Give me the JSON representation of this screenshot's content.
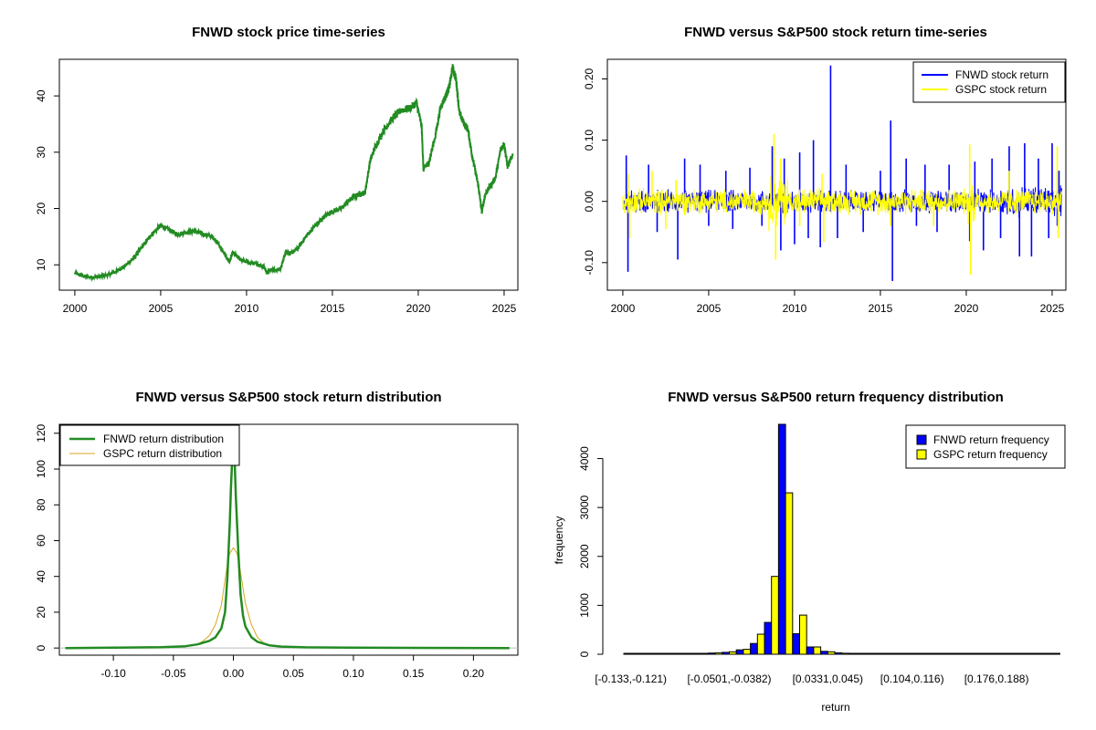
{
  "colors": {
    "fnwd_price": "#228B22",
    "fnwd_return": "#0000FF",
    "gspc_return": "#FFFF00",
    "gspc_density": "#DAA520",
    "fnwd_density": "#228B22"
  },
  "chart_data": [
    {
      "type": "line",
      "title": "FNWD stock price time-series",
      "xlabel": "",
      "ylabel": "",
      "xlim": [
        1999.1,
        2025.8
      ],
      "ylim": [
        5.5,
        46.5
      ],
      "xticks": [
        2000,
        2005,
        2010,
        2015,
        2020,
        2025
      ],
      "yticks": [
        10,
        20,
        30,
        40
      ],
      "series": [
        {
          "name": "FNWD",
          "x": [
            2000.0,
            2000.5,
            2001.0,
            2001.5,
            2002.0,
            2002.5,
            2003.0,
            2003.5,
            2004.0,
            2004.5,
            2005.0,
            2005.5,
            2006.0,
            2006.5,
            2007.0,
            2007.5,
            2008.0,
            2008.3,
            2008.6,
            2009.0,
            2009.2,
            2009.6,
            2010.0,
            2010.5,
            2011.0,
            2011.2,
            2011.4,
            2011.7,
            2012.0,
            2012.3,
            2012.6,
            2013.0,
            2013.5,
            2014.0,
            2014.5,
            2015.0,
            2015.5,
            2016.0,
            2016.5,
            2016.9,
            2017.2,
            2017.5,
            2018.0,
            2018.5,
            2019.0,
            2019.5,
            2019.9,
            2020.2,
            2020.3,
            2020.6,
            2021.0,
            2021.3,
            2021.6,
            2021.8,
            2022.0,
            2022.2,
            2022.4,
            2022.6,
            2022.9,
            2023.1,
            2023.3,
            2023.5,
            2023.7,
            2023.9,
            2024.2,
            2024.5,
            2024.8,
            2025.0,
            2025.2,
            2025.5
          ],
          "y": [
            8.5,
            8.0,
            7.8,
            7.9,
            8.3,
            9.0,
            10.0,
            11.5,
            13.5,
            15.5,
            17.0,
            16.2,
            15.4,
            15.8,
            16.0,
            15.4,
            15.0,
            14.0,
            12.5,
            10.5,
            12.2,
            11.0,
            10.5,
            10.2,
            9.8,
            8.5,
            9.3,
            9.0,
            9.4,
            12.5,
            12.0,
            13.0,
            15.2,
            17.0,
            18.5,
            19.5,
            20.0,
            21.5,
            22.5,
            22.8,
            28.5,
            31.0,
            34.0,
            36.0,
            37.5,
            37.8,
            38.8,
            34.5,
            27.0,
            28.0,
            33.0,
            38.0,
            40.0,
            41.5,
            45.0,
            43.0,
            37.0,
            35.5,
            34.0,
            30.0,
            27.0,
            24.0,
            19.5,
            22.5,
            24.0,
            25.5,
            30.5,
            31.5,
            27.5,
            29.5
          ]
        }
      ]
    },
    {
      "type": "line",
      "title": "FNWD versus S&P500 stock return time-series",
      "xlabel": "",
      "ylabel": "",
      "xlim": [
        1999.1,
        2025.8
      ],
      "ylim": [
        -0.145,
        0.232
      ],
      "xticks": [
        2000,
        2005,
        2010,
        2015,
        2020,
        2025
      ],
      "yticks": [
        -0.1,
        0.0,
        0.1,
        0.2
      ],
      "ytick_labels": [
        "-0.10",
        "0.00",
        "0.10",
        "0.20"
      ],
      "legend": [
        "FNWD stock return",
        "GSPC stock return"
      ],
      "legend_position": "top-right",
      "series": [
        {
          "name": "FNWD stock return",
          "spikes": [
            [
              2000.2,
              0.075
            ],
            [
              2000.3,
              -0.115
            ],
            [
              2001.5,
              0.06
            ],
            [
              2002.0,
              -0.05
            ],
            [
              2003.2,
              -0.095
            ],
            [
              2003.6,
              0.07
            ],
            [
              2004.5,
              0.06
            ],
            [
              2005.0,
              -0.04
            ],
            [
              2006.0,
              0.05
            ],
            [
              2006.4,
              -0.045
            ],
            [
              2007.4,
              0.055
            ],
            [
              2008.1,
              -0.04
            ],
            [
              2008.7,
              0.09
            ],
            [
              2009.2,
              -0.08
            ],
            [
              2009.4,
              0.07
            ],
            [
              2010.0,
              -0.07
            ],
            [
              2010.3,
              0.08
            ],
            [
              2010.8,
              -0.06
            ],
            [
              2011.1,
              0.1
            ],
            [
              2011.5,
              -0.075
            ],
            [
              2012.1,
              0.222
            ],
            [
              2012.5,
              -0.06
            ],
            [
              2013.0,
              0.06
            ],
            [
              2014.0,
              -0.05
            ],
            [
              2015.0,
              0.05
            ],
            [
              2015.6,
              0.132
            ],
            [
              2015.7,
              -0.13
            ],
            [
              2016.5,
              0.07
            ],
            [
              2017.1,
              -0.04
            ],
            [
              2017.6,
              0.06
            ],
            [
              2018.3,
              -0.05
            ],
            [
              2019.0,
              0.06
            ],
            [
              2020.2,
              -0.065
            ],
            [
              2020.5,
              0.065
            ],
            [
              2021.0,
              -0.08
            ],
            [
              2021.5,
              0.07
            ],
            [
              2022.0,
              -0.06
            ],
            [
              2022.5,
              0.09
            ],
            [
              2023.1,
              -0.09
            ],
            [
              2023.4,
              0.095
            ],
            [
              2023.8,
              -0.09
            ],
            [
              2024.2,
              0.07
            ],
            [
              2024.8,
              -0.06
            ],
            [
              2025.0,
              0.095
            ],
            [
              2025.3,
              -0.04
            ],
            [
              2025.4,
              0.05
            ]
          ],
          "noise_amplitude": 0.018
        },
        {
          "name": "GSPC stock return",
          "spikes": [
            [
              2000.3,
              0.045
            ],
            [
              2000.4,
              -0.06
            ],
            [
              2001.7,
              0.05
            ],
            [
              2002.5,
              -0.045
            ],
            [
              2003.1,
              0.035
            ],
            [
              2008.8,
              0.11
            ],
            [
              2008.9,
              -0.095
            ],
            [
              2009.2,
              0.07
            ],
            [
              2010.3,
              -0.04
            ],
            [
              2011.6,
              0.045
            ],
            [
              2011.7,
              -0.066
            ],
            [
              2015.6,
              -0.04
            ],
            [
              2018.1,
              -0.04
            ],
            [
              2020.2,
              0.093
            ],
            [
              2020.25,
              -0.12
            ],
            [
              2022.5,
              0.05
            ],
            [
              2025.3,
              0.09
            ],
            [
              2025.35,
              -0.06
            ]
          ],
          "noise_amplitude": 0.02
        }
      ]
    },
    {
      "type": "line",
      "title": "FNWD versus S&P500 stock return distribution",
      "xlabel": "",
      "ylabel": "",
      "xlim": [
        -0.145,
        0.237
      ],
      "ylim": [
        -4,
        125
      ],
      "xticks": [
        -0.1,
        -0.05,
        0.0,
        0.05,
        0.1,
        0.15,
        0.2
      ],
      "xtick_labels": [
        "-0.10",
        "-0.05",
        "0.00",
        "0.05",
        "0.10",
        "0.15",
        "0.20"
      ],
      "yticks": [
        0,
        20,
        40,
        60,
        80,
        100,
        120
      ],
      "legend": [
        "FNWD return distribution",
        "GSPC return distribution"
      ],
      "legend_position": "top-left",
      "series": [
        {
          "name": "FNWD return distribution",
          "x": [
            -0.14,
            -0.1,
            -0.06,
            -0.04,
            -0.03,
            -0.02,
            -0.015,
            -0.01,
            -0.007,
            -0.005,
            -0.003,
            -0.002,
            -0.001,
            0.0,
            0.001,
            0.002,
            0.004,
            0.006,
            0.008,
            0.01,
            0.015,
            0.02,
            0.03,
            0.04,
            0.06,
            0.1,
            0.15,
            0.23
          ],
          "y": [
            0.0,
            0.2,
            0.5,
            1.0,
            2.0,
            4.0,
            6.0,
            11.0,
            20.0,
            40.0,
            70.0,
            90.0,
            105.0,
            110.0,
            105.0,
            85.0,
            55.0,
            30.0,
            18.0,
            12.0,
            6.0,
            3.5,
            1.5,
            0.8,
            0.4,
            0.2,
            0.1,
            0.0
          ]
        },
        {
          "name": "GSPC return distribution",
          "x": [
            -0.13,
            -0.1,
            -0.06,
            -0.04,
            -0.03,
            -0.025,
            -0.02,
            -0.015,
            -0.01,
            -0.007,
            -0.005,
            -0.003,
            0.0,
            0.003,
            0.005,
            0.007,
            0.01,
            0.015,
            0.02,
            0.025,
            0.03,
            0.04,
            0.06,
            0.1,
            0.15,
            0.23
          ],
          "y": [
            0.0,
            0.2,
            0.5,
            1.0,
            2.0,
            4.0,
            7.0,
            13.0,
            24.0,
            38.0,
            47.0,
            53.0,
            56.0,
            53.0,
            46.0,
            38.0,
            25.0,
            13.0,
            6.0,
            3.0,
            1.5,
            0.8,
            0.3,
            0.1,
            0.0,
            0.0
          ]
        }
      ]
    },
    {
      "type": "bar",
      "title": "FNWD versus S&P500 return frequency distribution",
      "xlabel": "return",
      "ylabel": "frequency",
      "ylim": [
        0,
        4700
      ],
      "yticks": [
        0,
        1000,
        2000,
        3000,
        4000
      ],
      "xtick_labels": [
        "[-0.133,-0.121)",
        "[-0.0501,-0.0382)",
        "[0.0331,0.045)",
        "[0.104,0.116)",
        "[0.176,0.188)"
      ],
      "xtick_bin_index": [
        0,
        7,
        14,
        20,
        26
      ],
      "legend": [
        "FNWD return frequency",
        "GSPC return frequency"
      ],
      "legend_position": "top-right",
      "series": [
        {
          "name": "FNWD return frequency",
          "values": [
            3,
            2,
            5,
            10,
            12,
            15,
            25,
            40,
            90,
            220,
            650,
            4750,
            420,
            150,
            60,
            30,
            15,
            10,
            5,
            3,
            2,
            1,
            1,
            0,
            0,
            0,
            0,
            0,
            0,
            0,
            0
          ]
        },
        {
          "name": "GSPC return frequency",
          "values": [
            1,
            1,
            2,
            5,
            8,
            15,
            30,
            50,
            100,
            410,
            1590,
            3300,
            800,
            150,
            50,
            20,
            10,
            5,
            3,
            1,
            1,
            0,
            0,
            0,
            0,
            0,
            0,
            0,
            0,
            0,
            0
          ]
        }
      ]
    }
  ]
}
